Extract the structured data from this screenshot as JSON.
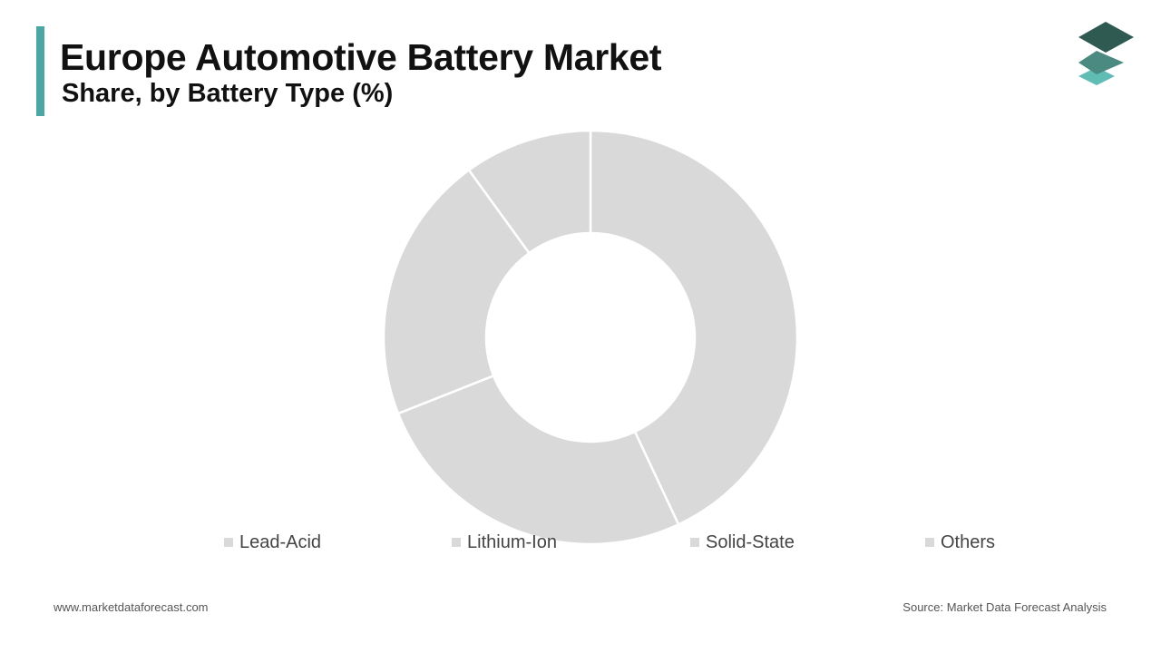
{
  "header": {
    "title": "Europe Automotive Battery Market",
    "subtitle": "Share, by Battery Type (%)"
  },
  "colors": {
    "accent": "#4aa8a4",
    "slice": "#d9d9d9",
    "slice_border": "#ffffff",
    "logo_dark": "#2f5a52",
    "logo_mid": "#4a8a80",
    "logo_light": "#5fbdb5"
  },
  "logo": {
    "icon": "stacked-layers-icon"
  },
  "chart_data": {
    "type": "pie",
    "variant": "donut",
    "categories": [
      "Lead-Acid",
      "Lithium-Ion",
      "Solid-State",
      "Others"
    ],
    "values": [
      43,
      26,
      21,
      10
    ],
    "legend_position": "bottom"
  },
  "footer": {
    "website": "www.marketdataforecast.com",
    "source": "Source: Market Data Forecast Analysis"
  }
}
